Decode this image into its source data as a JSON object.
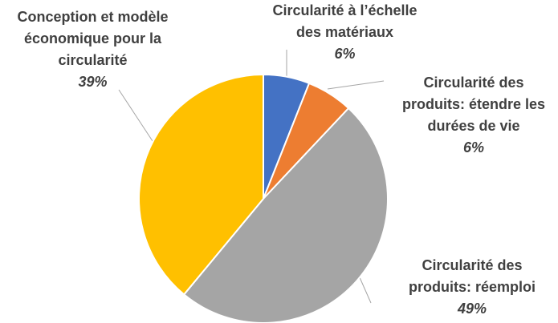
{
  "chart_data": {
    "type": "pie",
    "categories": [
      "Circularité à l’échelle des matériaux",
      "Circularité des produits: étendre les durées de vie",
      "Circularité des produits: réemploi",
      "Conception et modèle économique pour la circularité"
    ],
    "values": [
      6,
      6,
      49,
      39
    ],
    "value_labels": [
      "6%",
      "6%",
      "49%",
      "39%"
    ],
    "colors": [
      "#4472c4",
      "#ed7d31",
      "#a5a5a5",
      "#ffc000"
    ]
  }
}
